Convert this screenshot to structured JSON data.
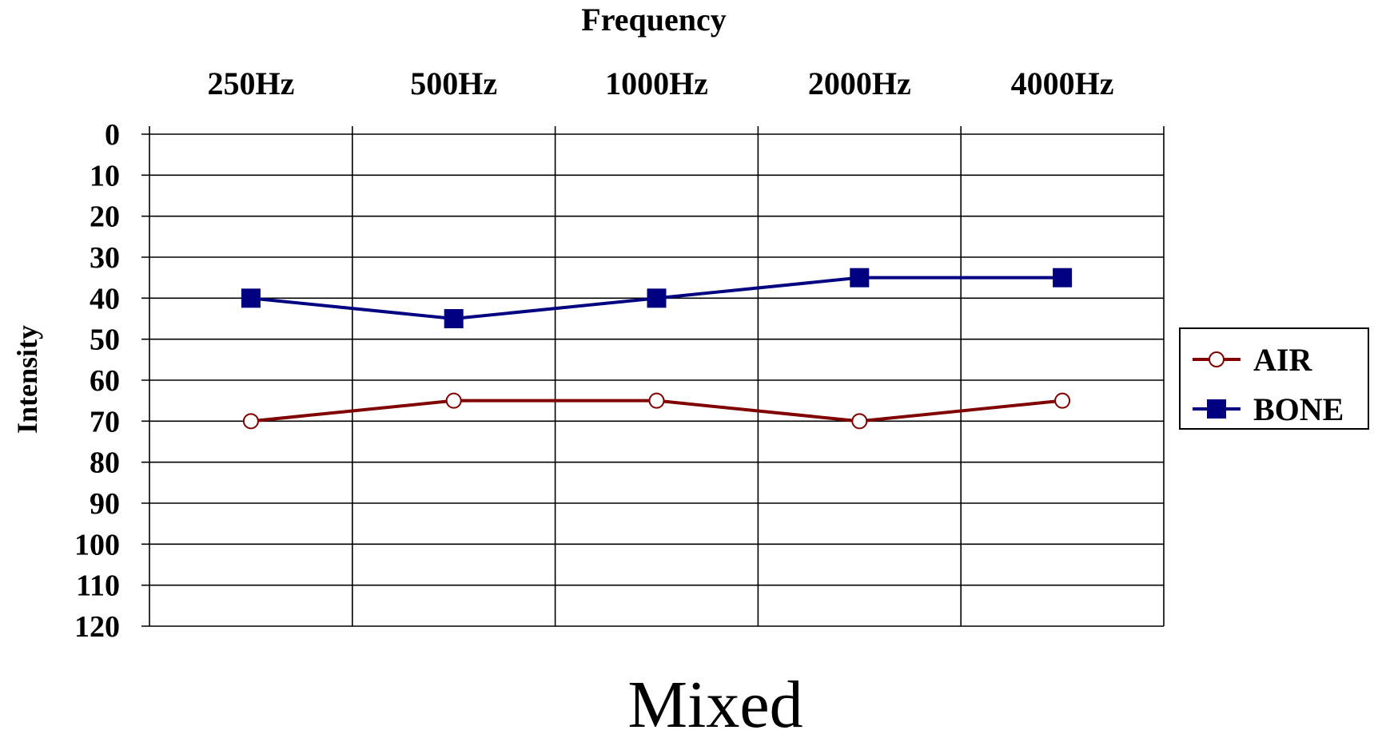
{
  "chart_data": {
    "type": "line",
    "title": "Frequency",
    "caption": "Mixed",
    "ylabel": "Intensity",
    "categories": [
      "250Hz",
      "500Hz",
      "1000Hz",
      "2000Hz",
      "4000Hz"
    ],
    "y_ticks": [
      "0",
      "10",
      "20",
      "30",
      "40",
      "50",
      "60",
      "70",
      "80",
      "90",
      "100",
      "110",
      "120"
    ],
    "ylim": [
      0,
      120
    ],
    "y_inverted": true,
    "x_axis_position": "top",
    "grid": true,
    "legend_position": "right",
    "series": [
      {
        "name": "AIR",
        "values": [
          70,
          65,
          65,
          70,
          65
        ],
        "color": "#800000",
        "marker": "open-circle"
      },
      {
        "name": "BONE",
        "values": [
          40,
          45,
          40,
          35,
          35
        ],
        "color": "#000080",
        "marker": "filled-square"
      }
    ]
  }
}
